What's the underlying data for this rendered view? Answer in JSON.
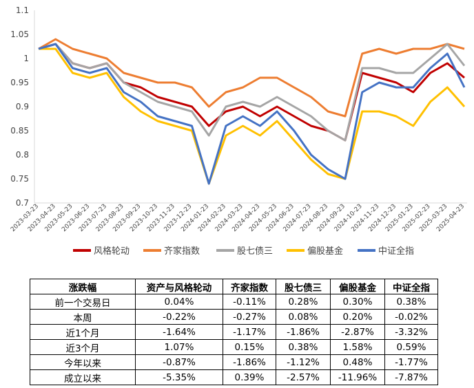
{
  "chart_data": {
    "type": "line",
    "x": [
      "2023-03-23",
      "2023-04-23",
      "2023-05-23",
      "2023-06-23",
      "2023-07-23",
      "2023-08-23",
      "2023-09-23",
      "2023-10-23",
      "2023-11-23",
      "2023-12-23",
      "2024-01-23",
      "2024-02-23",
      "2024-03-23",
      "2024-04-23",
      "2024-05-23",
      "2024-06-23",
      "2024-07-23",
      "2024-08-23",
      "2024-09-23",
      "2024-10-23",
      "2024-11-23",
      "2024-12-23",
      "2025-01-23",
      "2025-02-23",
      "2025-03-23",
      "2025-04-23"
    ],
    "ylim": [
      0.7,
      1.1
    ],
    "yticks": [
      "0.7",
      "0.75",
      "0.8",
      "0.85",
      "0.9",
      "0.95",
      "1",
      "1.05",
      "1.1"
    ],
    "grid": false,
    "legend_position": "bottom",
    "series": [
      {
        "name": "风格轮动",
        "color": "#C00000",
        "values": [
          1.02,
          1.03,
          0.99,
          0.98,
          0.99,
          0.95,
          0.94,
          0.92,
          0.91,
          0.9,
          0.86,
          0.89,
          0.9,
          0.88,
          0.9,
          0.88,
          0.86,
          0.85,
          0.83,
          0.97,
          0.96,
          0.95,
          0.93,
          0.97,
          0.99,
          0.96
        ]
      },
      {
        "name": "齐家指数",
        "color": "#ED7D31",
        "values": [
          1.02,
          1.04,
          1.02,
          1.01,
          1.0,
          0.97,
          0.96,
          0.95,
          0.95,
          0.94,
          0.9,
          0.93,
          0.94,
          0.96,
          0.96,
          0.94,
          0.92,
          0.89,
          0.88,
          1.01,
          1.02,
          1.01,
          1.02,
          1.02,
          1.03,
          1.02
        ]
      },
      {
        "name": "股七债三",
        "color": "#A5A5A5",
        "values": [
          1.02,
          1.03,
          0.99,
          0.98,
          0.99,
          0.95,
          0.93,
          0.91,
          0.9,
          0.89,
          0.84,
          0.9,
          0.91,
          0.9,
          0.92,
          0.9,
          0.88,
          0.85,
          0.83,
          0.98,
          0.98,
          0.97,
          0.97,
          1.0,
          1.03,
          0.985
        ]
      },
      {
        "name": "偏股基金",
        "color": "#FFC000",
        "values": [
          1.02,
          1.02,
          0.97,
          0.96,
          0.97,
          0.92,
          0.89,
          0.87,
          0.86,
          0.85,
          0.74,
          0.84,
          0.86,
          0.84,
          0.87,
          0.83,
          0.79,
          0.76,
          0.75,
          0.89,
          0.89,
          0.88,
          0.86,
          0.91,
          0.94,
          0.9
        ]
      },
      {
        "name": "中证全指",
        "color": "#4472C4",
        "values": [
          1.02,
          1.03,
          0.98,
          0.97,
          0.98,
          0.93,
          0.91,
          0.88,
          0.87,
          0.86,
          0.74,
          0.86,
          0.88,
          0.86,
          0.89,
          0.85,
          0.8,
          0.77,
          0.75,
          0.93,
          0.95,
          0.94,
          0.94,
          0.98,
          1.01,
          0.94
        ]
      }
    ]
  },
  "table": {
    "header": [
      "涨跌幅",
      "资产与风格轮动",
      "齐家指数",
      "股七债三",
      "偏股基金",
      "中证全指"
    ],
    "rows": [
      [
        "前一个交易日",
        "0.04%",
        "-0.11%",
        "0.28%",
        "0.30%",
        "0.38%"
      ],
      [
        "本周",
        "-0.22%",
        "-0.27%",
        "0.08%",
        "0.20%",
        "-0.02%"
      ],
      [
        "近1个月",
        "-1.64%",
        "-1.17%",
        "-1.86%",
        "-2.87%",
        "-3.32%"
      ],
      [
        "近3个月",
        "1.07%",
        "0.15%",
        "0.38%",
        "1.58%",
        "0.59%"
      ],
      [
        "今年以来",
        "-0.87%",
        "-1.86%",
        "-1.12%",
        "0.48%",
        "-1.77%"
      ],
      [
        "成立以来",
        "-5.35%",
        "0.39%",
        "-2.57%",
        "-11.96%",
        "-7.87%"
      ]
    ]
  }
}
